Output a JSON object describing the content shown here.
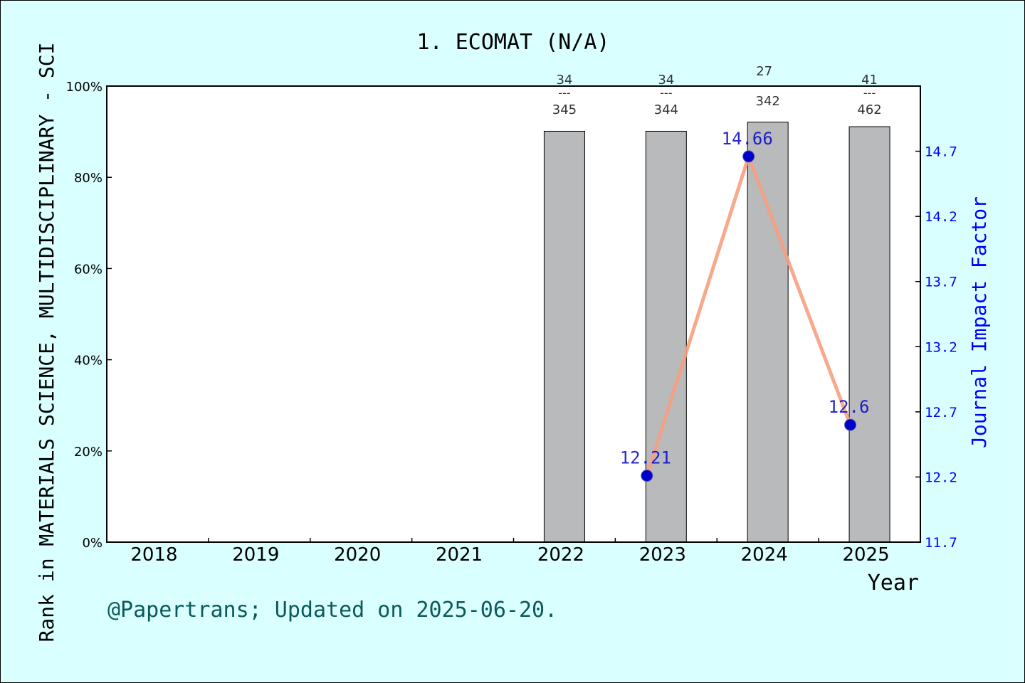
{
  "colors": {
    "background": "#d9ffff",
    "bar_fill": "#b8babc",
    "line": "#f7a07e",
    "marker": "#0000cc",
    "right_axis": "#0000ff",
    "footer": "#0b5a5a"
  },
  "chart_data": {
    "type": "bar",
    "title": "1. ECOMAT (N/A)",
    "xlabel": "Year",
    "ylabel_left": "Rank in MATERIALS SCIENCE, MULTIDISCIPLINARY - SCI",
    "ylabel_right": "Journal Impact Factor",
    "categories": [
      "2018",
      "2019",
      "2020",
      "2021",
      "2022",
      "2023",
      "2024",
      "2025"
    ],
    "left_axis": {
      "ylim": [
        0,
        100
      ],
      "ticks": [
        "0%",
        "20%",
        "40%",
        "60%",
        "80%",
        "100%"
      ]
    },
    "right_axis": {
      "ylim": [
        11.7,
        15.2
      ],
      "ticks": [
        "11.7",
        "12.2",
        "12.7",
        "13.2",
        "13.7",
        "14.2",
        "14.7"
      ]
    },
    "series": [
      {
        "type": "bar",
        "values": [
          null,
          null,
          null,
          null,
          90.1,
          90.1,
          92.1,
          91.1
        ],
        "labels": [
          null,
          null,
          null,
          null,
          {
            "rank": "34",
            "sep": "---",
            "total": "345"
          },
          {
            "rank": "34",
            "sep": "---",
            "total": "344"
          },
          {
            "rank": "27",
            "sep": "",
            "total": "342"
          },
          {
            "rank": "41",
            "sep": "---",
            "total": "462"
          }
        ]
      },
      {
        "type": "line",
        "x": [
          "2023",
          "2024",
          "2025"
        ],
        "values": [
          12.21,
          14.66,
          12.6
        ],
        "labels": [
          "12.21",
          "14.66",
          "12.6"
        ]
      }
    ],
    "grid": false,
    "legend": "none"
  },
  "footer": "@Papertrans; Updated on 2025-06-20."
}
